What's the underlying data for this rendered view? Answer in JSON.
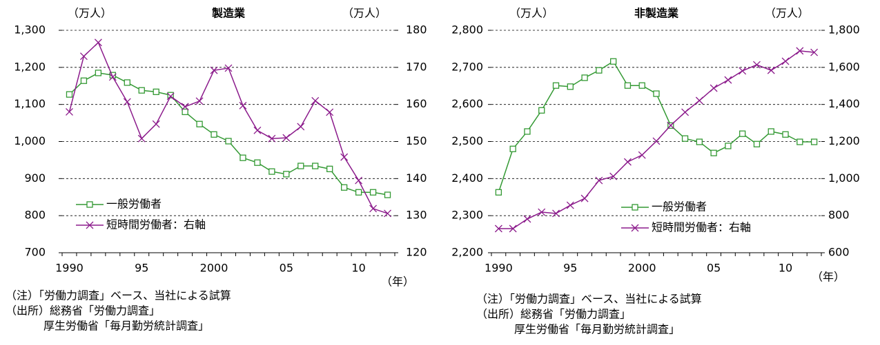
{
  "chart_data": [
    {
      "type": "line",
      "title": "製造業",
      "y_unit": "（万人）",
      "y2_unit": "（万人）",
      "x_unit": "（年）",
      "categories": [
        "1990",
        null,
        null,
        null,
        null,
        "95",
        null,
        null,
        null,
        null,
        "2000",
        null,
        null,
        null,
        null,
        "05",
        null,
        null,
        null,
        null,
        "10",
        null,
        null
      ],
      "series": [
        {
          "name": "一般労働者",
          "color": "#339933",
          "marker": "square",
          "values": [
            1127,
            1164,
            1185,
            1179,
            1159,
            1138,
            1134,
            1125,
            1080,
            1047,
            1019,
            1001,
            956,
            943,
            919,
            912,
            934,
            934,
            926,
            876,
            863,
            863,
            856
          ]
        },
        {
          "name": "短時間労働者：右軸",
          "color": "#8b1a8b",
          "marker": "x",
          "axis": "y2",
          "values": [
            158,
            173,
            176.7,
            167.4,
            160.7,
            150.8,
            154.7,
            162.2,
            159.4,
            160.9,
            169.2,
            169.8,
            159.7,
            153,
            150.8,
            151,
            154,
            161,
            157.9,
            145.8,
            139.5,
            131.9,
            130.6
          ]
        }
      ],
      "ylim": [
        700,
        1300
      ],
      "yticks": [
        700,
        800,
        900,
        {
          "value": 1000,
          "label": "1,000"
        },
        {
          "value": 1100,
          "label": "1,100"
        },
        {
          "value": 1200,
          "label": "1,200"
        },
        {
          "value": 1300,
          "label": "1,300"
        }
      ],
      "y2lim": [
        120,
        180
      ],
      "y2ticks": [
        120,
        130,
        140,
        150,
        160,
        170,
        180
      ],
      "grid": true,
      "legend": "lower left",
      "notes": [
        "（注）「労働力調査」ベース、当社による試算",
        "（出所）総務省「労働力調査」",
        "厚生労働省「毎月勤労統計調査」"
      ]
    },
    {
      "type": "line",
      "title": "非製造業",
      "y_unit": "（万人）",
      "y2_unit": "（万人）",
      "x_unit": "（年）",
      "categories": [
        "1990",
        null,
        null,
        null,
        null,
        "95",
        null,
        null,
        null,
        null,
        "2000",
        null,
        null,
        null,
        null,
        "05",
        null,
        null,
        null,
        null,
        "10",
        null,
        null
      ],
      "series": [
        {
          "name": "一般労働者",
          "color": "#339933",
          "marker": "square",
          "values": [
            2363,
            2480,
            2527,
            2584,
            2651,
            2648,
            2672,
            2692,
            2716,
            2651,
            2651,
            2629,
            2543,
            2508,
            2499,
            2469,
            2488,
            2521,
            2493,
            2527,
            2519,
            2499,
            2499
          ]
        },
        {
          "name": "短時間労働者：右軸",
          "color": "#8b1a8b",
          "marker": "x",
          "axis": "y2",
          "values": [
            730,
            730,
            782,
            819,
            812,
            856,
            893,
            990,
            1012,
            1090,
            1127,
            1202,
            1287,
            1358,
            1421,
            1488,
            1532,
            1581,
            1614,
            1584,
            1633,
            1689,
            1681
          ]
        }
      ],
      "ylim": [
        2200,
        2800
      ],
      "yticks": [
        {
          "value": 2200,
          "label": "2,200"
        },
        {
          "value": 2300,
          "label": "2,300"
        },
        {
          "value": 2400,
          "label": "2,400"
        },
        {
          "value": 2500,
          "label": "2,500"
        },
        {
          "value": 2600,
          "label": "2,600"
        },
        {
          "value": 2700,
          "label": "2,700"
        },
        {
          "value": 2800,
          "label": "2,800"
        }
      ],
      "y2lim": [
        600,
        1800
      ],
      "y2ticks": [
        600,
        800,
        {
          "value": 1000,
          "label": "1,000"
        },
        {
          "value": 1200,
          "label": "1,200"
        },
        {
          "value": 1400,
          "label": "1,400"
        },
        {
          "value": 1600,
          "label": "1,600"
        },
        {
          "value": 1800,
          "label": "1,800"
        }
      ],
      "grid": true,
      "legend": "lower right",
      "notes": [
        "（注）「労働力調査」ベース、当社による試算",
        "（出所）総務省「労働力調査」",
        "厚生労働省「毎月勤労統計調査」"
      ]
    }
  ]
}
